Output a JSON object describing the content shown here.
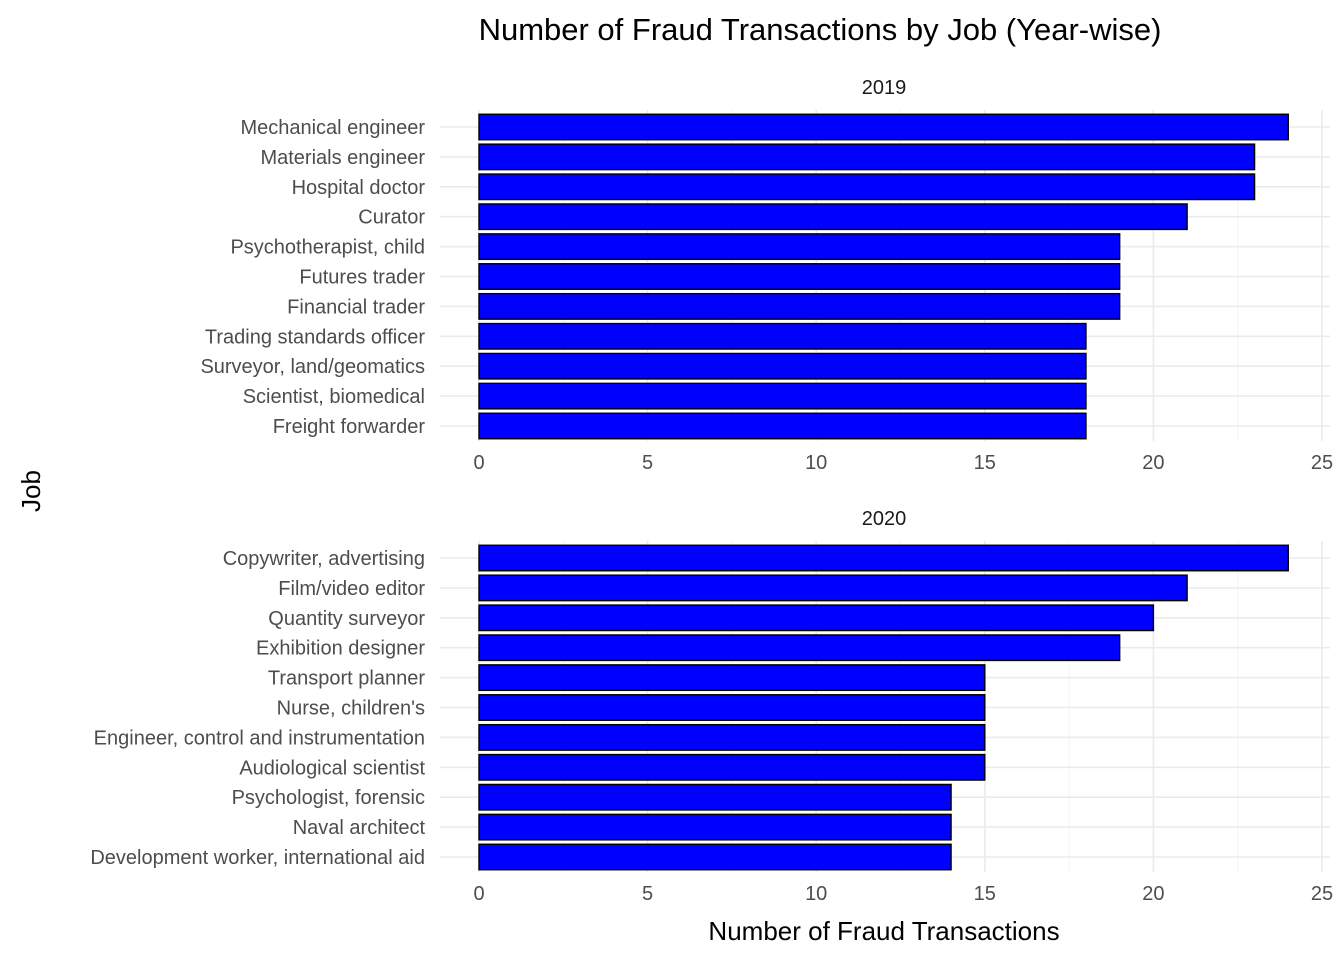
{
  "chart_data": {
    "type": "bar",
    "orientation": "horizontal",
    "title": "Number of Fraud Transactions by Job (Year-wise)",
    "xlabel": "Number of Fraud Transactions",
    "ylabel": "Job",
    "xlim": [
      0,
      25
    ],
    "xticks": [
      0,
      5,
      10,
      15,
      20,
      25
    ],
    "grid": true,
    "bar_color": "#0000ff",
    "bar_edge_color": "#000000",
    "facets": [
      {
        "label": "2019",
        "categories": [
          "Mechanical engineer",
          "Materials engineer",
          "Hospital doctor",
          "Curator",
          "Psychotherapist, child",
          "Futures trader",
          "Financial trader",
          "Trading standards officer",
          "Surveyor, land/geomatics",
          "Scientist, biomedical",
          "Freight forwarder"
        ],
        "values": [
          24,
          23,
          23,
          21,
          19,
          19,
          19,
          18,
          18,
          18,
          18
        ]
      },
      {
        "label": "2020",
        "categories": [
          "Copywriter, advertising",
          "Film/video editor",
          "Quantity surveyor",
          "Exhibition designer",
          "Transport planner",
          "Nurse, children's",
          "Engineer, control and instrumentation",
          "Audiological scientist",
          "Psychologist, forensic",
          "Naval architect",
          "Development worker, international aid"
        ],
        "values": [
          24,
          21,
          20,
          19,
          15,
          15,
          15,
          15,
          14,
          14,
          14
        ]
      }
    ]
  }
}
